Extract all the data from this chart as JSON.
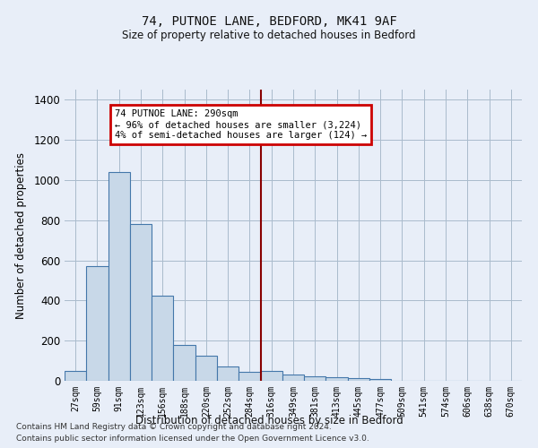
{
  "title": "74, PUTNOE LANE, BEDFORD, MK41 9AF",
  "subtitle": "Size of property relative to detached houses in Bedford",
  "xlabel": "Distribution of detached houses by size in Bedford",
  "ylabel": "Number of detached properties",
  "footnote1": "Contains HM Land Registry data © Crown copyright and database right 2024.",
  "footnote2": "Contains public sector information licensed under the Open Government Licence v3.0.",
  "annotation_title": "74 PUTNOE LANE: 290sqm",
  "annotation_line1": "← 96% of detached houses are smaller (3,224)",
  "annotation_line2": "4% of semi-detached houses are larger (124) →",
  "bar_color": "#c8d8e8",
  "bar_edge_color": "#4477aa",
  "vline_color": "#880000",
  "annotation_box_color": "#cc0000",
  "background_color": "#e8eef8",
  "categories": [
    "27sqm",
    "59sqm",
    "91sqm",
    "123sqm",
    "156sqm",
    "188sqm",
    "220sqm",
    "252sqm",
    "284sqm",
    "316sqm",
    "349sqm",
    "381sqm",
    "413sqm",
    "445sqm",
    "477sqm",
    "509sqm",
    "541sqm",
    "574sqm",
    "606sqm",
    "638sqm",
    "670sqm"
  ],
  "values": [
    50,
    570,
    1040,
    780,
    425,
    180,
    125,
    70,
    45,
    50,
    30,
    22,
    18,
    12,
    8,
    0,
    0,
    0,
    0,
    0,
    0
  ],
  "vline_x": 8.5,
  "ylim": [
    0,
    1450
  ],
  "yticks": [
    0,
    200,
    400,
    600,
    800,
    1000,
    1200,
    1400
  ]
}
